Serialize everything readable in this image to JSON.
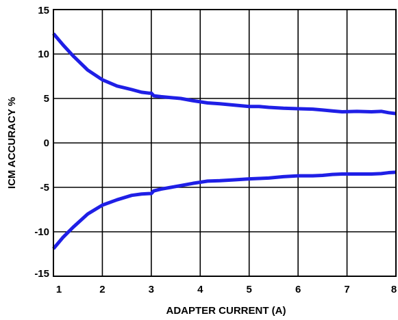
{
  "chart_data": {
    "type": "line",
    "title": "",
    "xlabel": "ADAPTER CURRENT (A)",
    "ylabel": "ICM ACCURACY %",
    "xlim": [
      1,
      8
    ],
    "ylim": [
      -15,
      15
    ],
    "x_ticks": [
      1,
      2,
      3,
      4,
      5,
      6,
      7,
      8
    ],
    "y_ticks": [
      15,
      10,
      5,
      0,
      -5,
      -10,
      -15
    ],
    "grid": true,
    "legend": "none",
    "line_color": "#1f1fe6",
    "series": [
      {
        "x": [
          1.0,
          1.2,
          1.4,
          1.7,
          2.0,
          2.3,
          2.6,
          2.8,
          2.95,
          3.0,
          3.05,
          3.2,
          3.4,
          3.6,
          3.85,
          4.15,
          4.4,
          4.7,
          5.0,
          5.2,
          5.4,
          5.7,
          6.0,
          6.3,
          6.5,
          6.7,
          6.9,
          7.2,
          7.5,
          7.7,
          7.85,
          8.0
        ],
        "y": [
          12.3,
          11.0,
          9.8,
          8.2,
          7.1,
          6.4,
          6.0,
          5.7,
          5.6,
          5.6,
          5.3,
          5.2,
          5.1,
          5.0,
          4.75,
          4.5,
          4.4,
          4.25,
          4.1,
          4.1,
          4.0,
          3.9,
          3.85,
          3.8,
          3.7,
          3.6,
          3.5,
          3.55,
          3.5,
          3.55,
          3.4,
          3.3
        ]
      },
      {
        "x": [
          1.0,
          1.2,
          1.4,
          1.7,
          2.0,
          2.3,
          2.6,
          2.8,
          2.95,
          3.0,
          3.05,
          3.2,
          3.4,
          3.6,
          3.85,
          4.15,
          4.4,
          4.7,
          5.0,
          5.2,
          5.4,
          5.7,
          6.0,
          6.3,
          6.5,
          6.7,
          6.9,
          7.2,
          7.5,
          7.7,
          7.85,
          8.0
        ],
        "y": [
          -11.9,
          -10.6,
          -9.5,
          -8.0,
          -7.0,
          -6.4,
          -5.9,
          -5.75,
          -5.7,
          -5.7,
          -5.4,
          -5.2,
          -5.0,
          -4.8,
          -4.55,
          -4.3,
          -4.25,
          -4.15,
          -4.05,
          -4.0,
          -3.95,
          -3.8,
          -3.7,
          -3.7,
          -3.65,
          -3.55,
          -3.5,
          -3.5,
          -3.5,
          -3.45,
          -3.35,
          -3.3
        ]
      }
    ]
  }
}
